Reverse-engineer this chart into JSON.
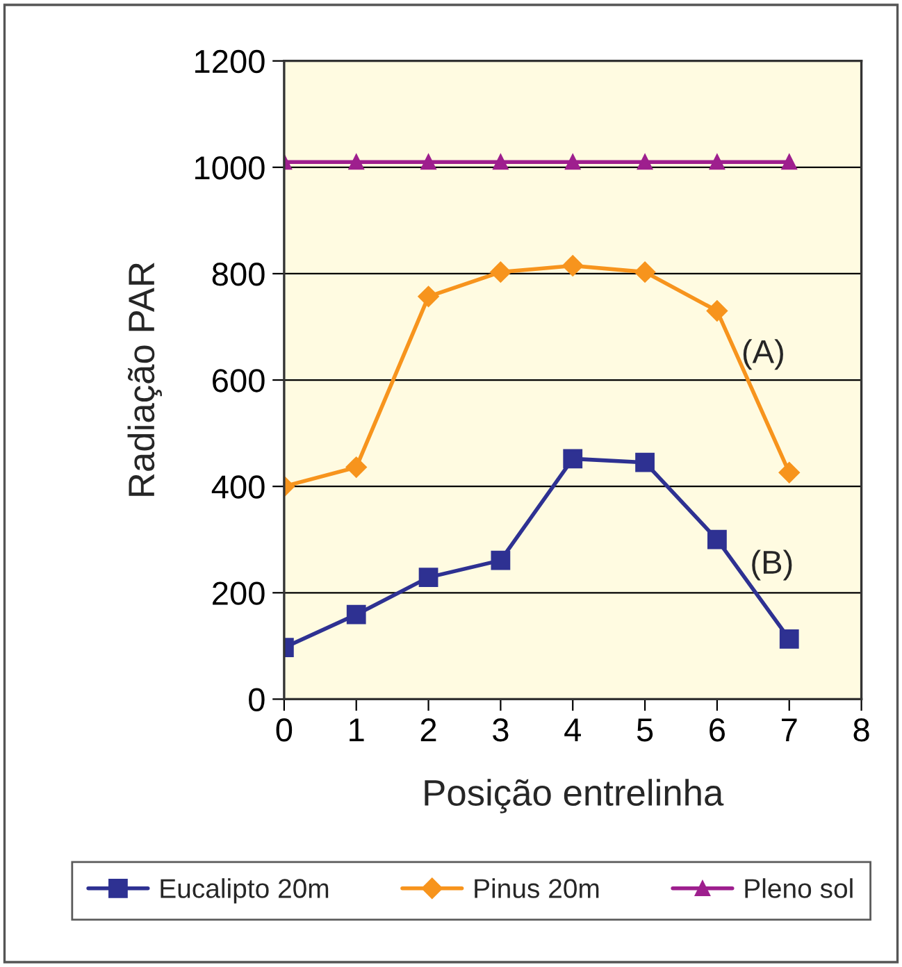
{
  "chart_data": {
    "type": "line",
    "xlabel": "Posição entrelinha",
    "ylabel": "Radiação PAR",
    "x": [
      0,
      1,
      2,
      3,
      4,
      5,
      6,
      7
    ],
    "series": [
      {
        "name": "Eucalipto 20m",
        "color": "#2e3192",
        "marker": "square",
        "values": [
          97,
          159,
          229,
          261,
          452,
          445,
          300,
          113
        ]
      },
      {
        "name": "Pinus 20m",
        "color": "#f7941d",
        "marker": "diamond",
        "values": [
          400,
          436,
          757,
          803,
          815,
          803,
          730,
          426
        ]
      },
      {
        "name": "Pleno sol",
        "color": "#9e1f8e",
        "marker": "triangle",
        "values": [
          1010,
          1010,
          1010,
          1010,
          1010,
          1010,
          1010,
          1010
        ]
      }
    ],
    "annotations": [
      "(A)",
      "(B)"
    ],
    "xlim": [
      0,
      8
    ],
    "xticks": [
      0,
      1,
      2,
      3,
      4,
      5,
      6,
      7,
      8
    ],
    "ylim": [
      0,
      1200
    ],
    "yticks": [
      0,
      200,
      400,
      600,
      800,
      1000,
      1200
    ],
    "grid": "y",
    "legend": "bottom",
    "line_style": "solid"
  }
}
